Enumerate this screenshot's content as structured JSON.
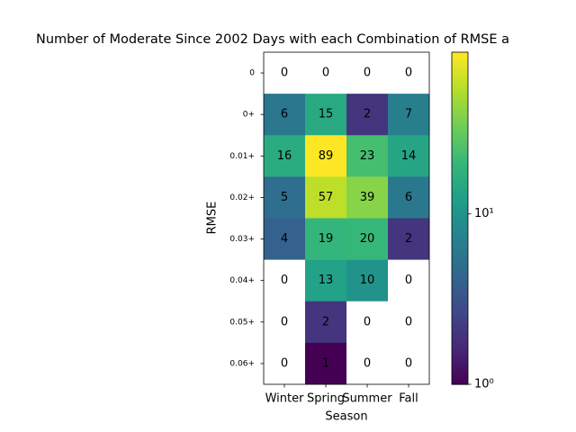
{
  "chart_data": {
    "type": "heatmap",
    "title": "Number of Moderate Since 2002 Days with each Combination of RMSE a",
    "x_label": "Season",
    "y_label": "RMSE",
    "categories": [
      "Winter",
      "Spring",
      "Summer",
      "Fall"
    ],
    "rows": [
      "0",
      "0+",
      "0.01+",
      "0.02+",
      "0.03+",
      "0.04+",
      "0.05+",
      "0.06+"
    ],
    "values": [
      [
        0,
        0,
        0,
        0
      ],
      [
        6,
        15,
        2,
        7
      ],
      [
        16,
        89,
        23,
        14
      ],
      [
        5,
        57,
        39,
        6
      ],
      [
        4,
        19,
        20,
        2
      ],
      [
        0,
        13,
        10,
        0
      ],
      [
        0,
        2,
        0,
        0
      ],
      [
        0,
        1,
        0,
        0
      ]
    ],
    "colormap": "viridis",
    "color_scale": "log",
    "clim": [
      1,
      89
    ],
    "cticks": [
      {
        "value": 1,
        "label": "10⁰"
      },
      {
        "value": 10,
        "label": "10¹"
      }
    ]
  }
}
